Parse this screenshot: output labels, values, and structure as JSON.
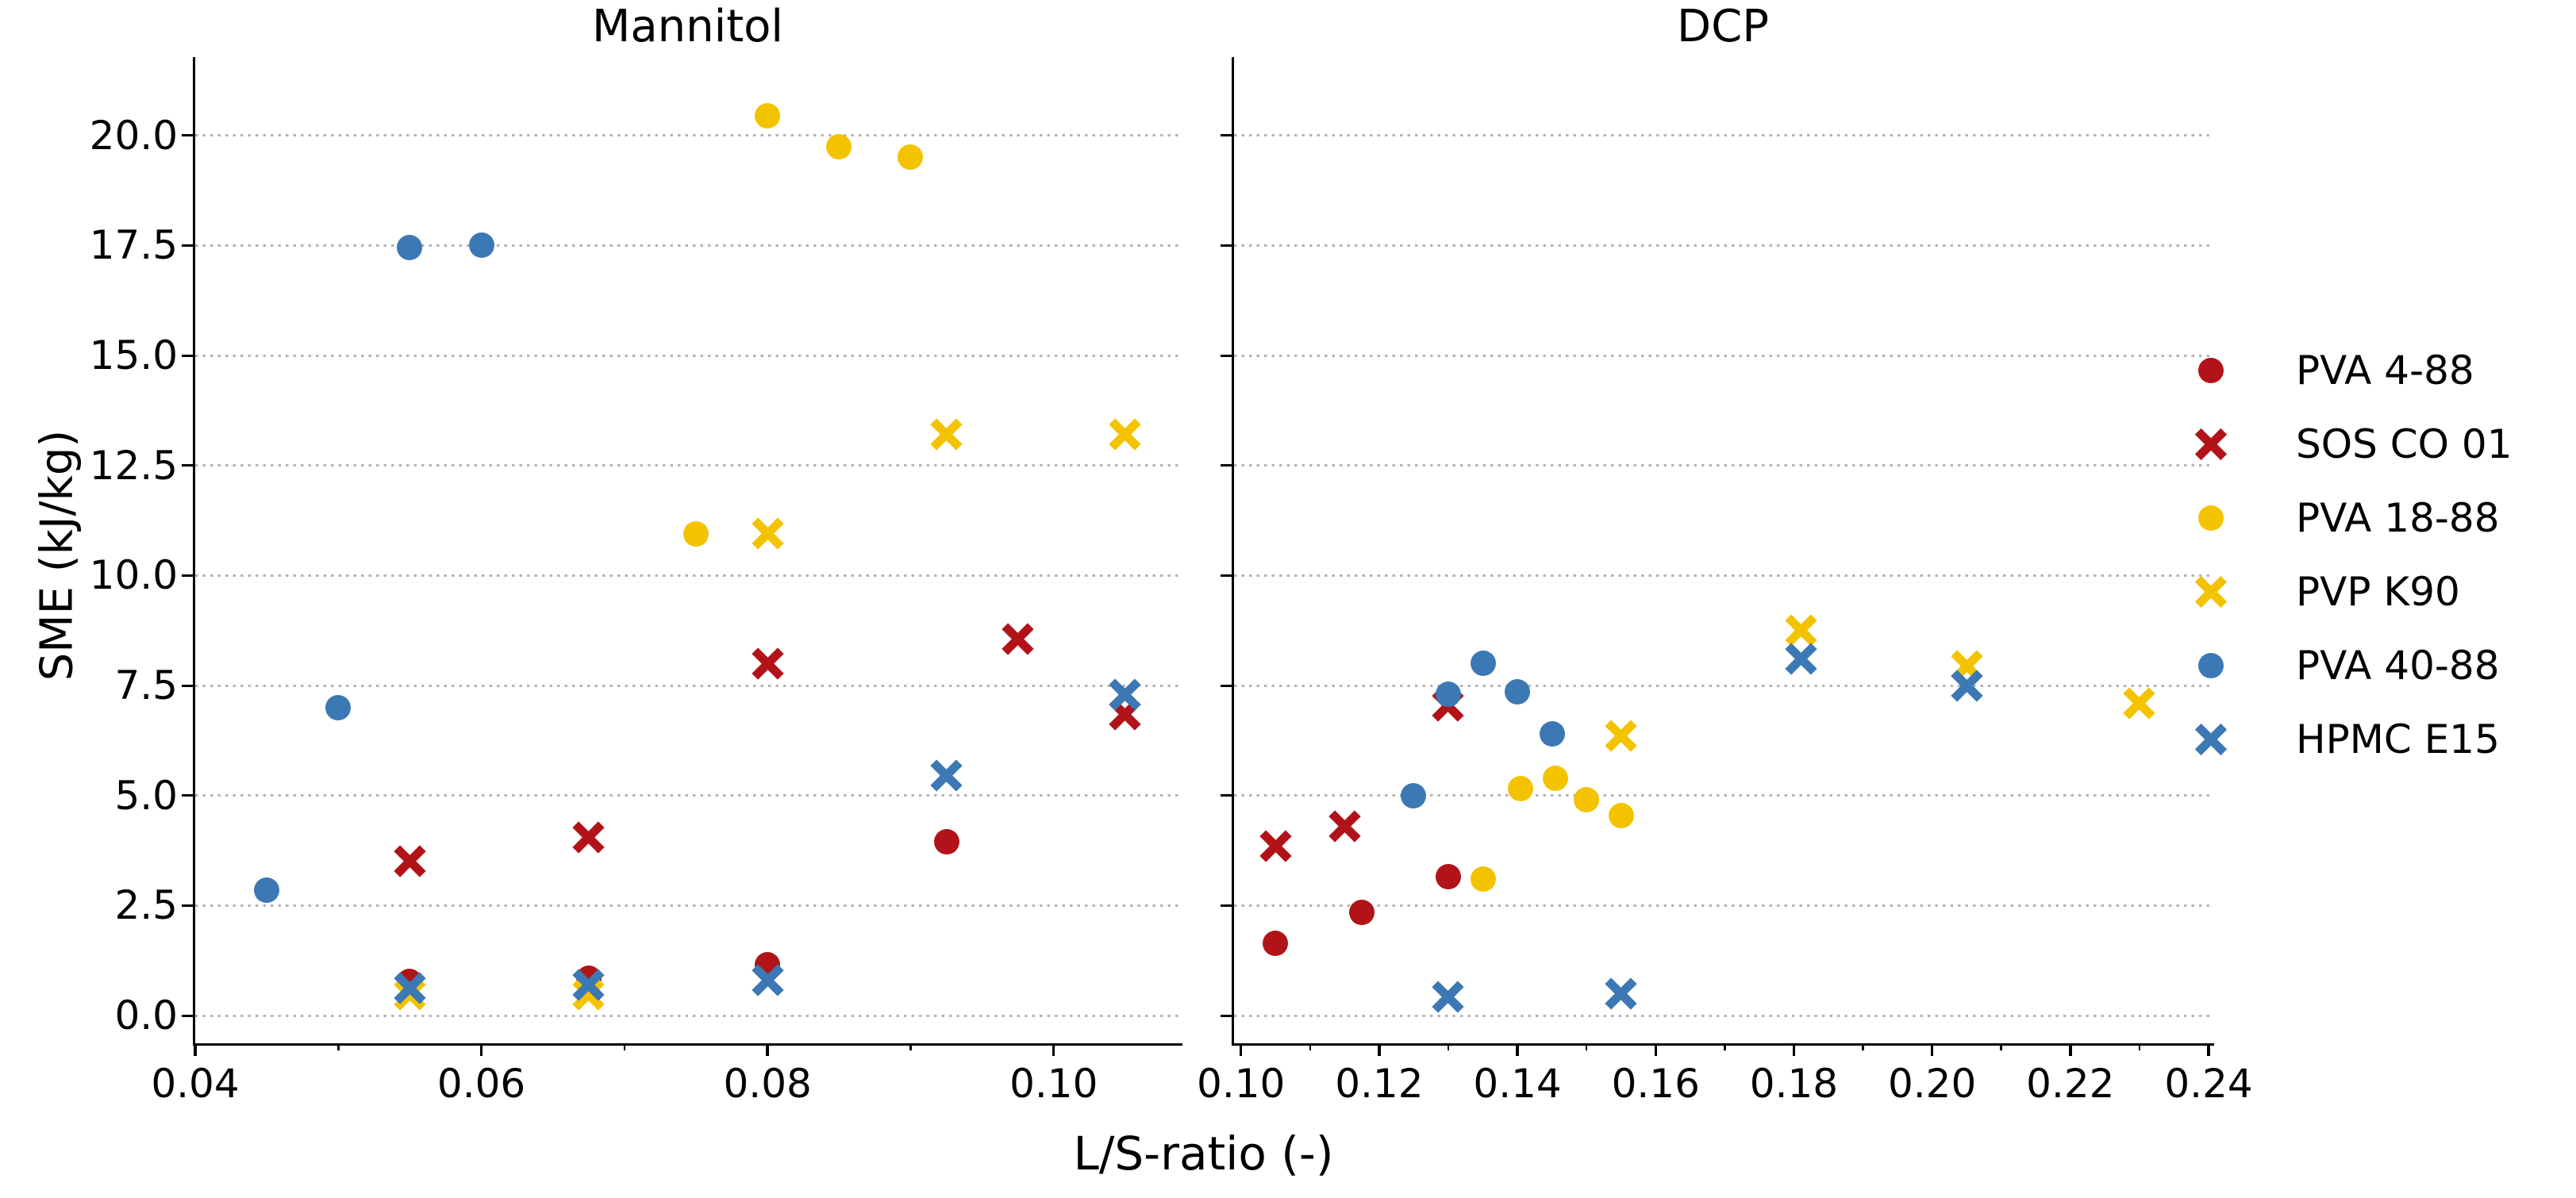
{
  "figure": {
    "xlabel": "L/S-ratio (-)",
    "ylabel": "SME (kJ/kg)"
  },
  "colors": {
    "red": "#B11318",
    "yellow": "#F4C300",
    "blue": "#3C78B4",
    "grid": "#b4b4b4",
    "text": "#000000",
    "background": "#ffffff"
  },
  "legend": {
    "items": [
      {
        "label": "PVA 4-88",
        "color": "red",
        "marker": "circle"
      },
      {
        "label": "SOS CO 01",
        "color": "red",
        "marker": "x"
      },
      {
        "label": "PVA 18-88",
        "color": "yellow",
        "marker": "circle"
      },
      {
        "label": "PVP K90",
        "color": "yellow",
        "marker": "x"
      },
      {
        "label": "PVA 40-88",
        "color": "blue",
        "marker": "circle"
      },
      {
        "label": "HPMC E15",
        "color": "blue",
        "marker": "x"
      }
    ]
  },
  "chart_data": [
    {
      "type": "scatter",
      "title": "Mannitol",
      "xlabel": "L/S-ratio (-)",
      "ylabel": "SME (kJ/kg)",
      "xlim": [
        0.04,
        0.109
      ],
      "ylim": [
        -0.63,
        21.78
      ],
      "grid": "y-dotted",
      "xticks": [
        {
          "v": 0.04,
          "label": "0.04"
        },
        {
          "v": 0.06,
          "label": "0.06"
        },
        {
          "v": 0.08,
          "label": "0.08"
        },
        {
          "v": 0.1,
          "label": "0.10"
        }
      ],
      "xminor": [
        0.05,
        0.07,
        0.09
      ],
      "yticks": [
        {
          "v": 0.0,
          "label": "0.0"
        },
        {
          "v": 2.5,
          "label": "2.5"
        },
        {
          "v": 5.0,
          "label": "5.0"
        },
        {
          "v": 7.5,
          "label": "7.5"
        },
        {
          "v": 10.0,
          "label": "10.0"
        },
        {
          "v": 12.5,
          "label": "12.5"
        },
        {
          "v": 15.0,
          "label": "15.0"
        },
        {
          "v": 17.5,
          "label": "17.5"
        },
        {
          "v": 20.0,
          "label": "20.0"
        }
      ],
      "show_ytick_labels": true,
      "series": [
        {
          "name": "PVA 4-88",
          "marker": "circle",
          "color": "red",
          "points": [
            [
              0.055,
              0.77
            ],
            [
              0.0675,
              0.85
            ],
            [
              0.08,
              1.15
            ],
            [
              0.0925,
              3.95
            ]
          ]
        },
        {
          "name": "SOS CO 01",
          "marker": "x",
          "color": "red",
          "points": [
            [
              0.055,
              3.5
            ],
            [
              0.0675,
              4.05
            ],
            [
              0.08,
              8.0
            ],
            [
              0.0975,
              8.55
            ],
            [
              0.105,
              6.85
            ]
          ]
        },
        {
          "name": "PVA 18-88",
          "marker": "circle",
          "color": "yellow",
          "points": [
            [
              0.075,
              10.95
            ],
            [
              0.08,
              20.45
            ],
            [
              0.085,
              19.75
            ],
            [
              0.09,
              19.5
            ]
          ]
        },
        {
          "name": "PVP K90",
          "marker": "x",
          "color": "yellow",
          "points": [
            [
              0.055,
              0.48
            ],
            [
              0.0675,
              0.48
            ],
            [
              0.08,
              10.95
            ],
            [
              0.0925,
              13.2
            ],
            [
              0.105,
              13.2
            ]
          ]
        },
        {
          "name": "PVA 40-88",
          "marker": "circle",
          "color": "blue",
          "points": [
            [
              0.045,
              2.85
            ],
            [
              0.05,
              7.0
            ],
            [
              0.055,
              17.45
            ],
            [
              0.06,
              17.5
            ]
          ]
        },
        {
          "name": "HPMC E15",
          "marker": "x",
          "color": "blue",
          "points": [
            [
              0.055,
              0.62
            ],
            [
              0.0675,
              0.7
            ],
            [
              0.08,
              0.8
            ],
            [
              0.0925,
              5.45
            ],
            [
              0.105,
              7.3
            ]
          ]
        }
      ]
    },
    {
      "type": "scatter",
      "title": "DCP",
      "xlabel": "L/S-ratio (-)",
      "ylabel": "SME (kJ/kg)",
      "xlim": [
        0.099,
        0.2408
      ],
      "ylim": [
        -0.63,
        21.78
      ],
      "grid": "y-dotted",
      "xticks": [
        {
          "v": 0.1,
          "label": "0.10"
        },
        {
          "v": 0.12,
          "label": "0.12"
        },
        {
          "v": 0.14,
          "label": "0.14"
        },
        {
          "v": 0.16,
          "label": "0.16"
        },
        {
          "v": 0.18,
          "label": "0.18"
        },
        {
          "v": 0.2,
          "label": "0.20"
        },
        {
          "v": 0.22,
          "label": "0.22"
        },
        {
          "v": 0.24,
          "label": "0.24"
        }
      ],
      "xminor": [
        0.11,
        0.13,
        0.15,
        0.17,
        0.19,
        0.21,
        0.23
      ],
      "yticks": [
        {
          "v": 0.0,
          "label": "0.0"
        },
        {
          "v": 2.5,
          "label": "2.5"
        },
        {
          "v": 5.0,
          "label": "5.0"
        },
        {
          "v": 7.5,
          "label": "7.5"
        },
        {
          "v": 10.0,
          "label": "10.0"
        },
        {
          "v": 12.5,
          "label": "12.5"
        },
        {
          "v": 15.0,
          "label": "15.0"
        },
        {
          "v": 17.5,
          "label": "17.5"
        },
        {
          "v": 20.0,
          "label": "20.0"
        }
      ],
      "show_ytick_labels": false,
      "series": [
        {
          "name": "PVA 4-88",
          "marker": "circle",
          "color": "red",
          "points": [
            [
              0.105,
              1.65
            ],
            [
              0.1175,
              2.35
            ],
            [
              0.13,
              3.15
            ]
          ]
        },
        {
          "name": "SOS CO 01",
          "marker": "x",
          "color": "red",
          "points": [
            [
              0.105,
              3.85
            ],
            [
              0.115,
              4.3
            ],
            [
              0.13,
              7.05
            ]
          ]
        },
        {
          "name": "PVA 18-88",
          "marker": "circle",
          "color": "yellow",
          "points": [
            [
              0.135,
              3.1
            ],
            [
              0.1405,
              5.15
            ],
            [
              0.1455,
              5.4
            ],
            [
              0.15,
              4.9
            ],
            [
              0.155,
              4.55
            ]
          ]
        },
        {
          "name": "PVP K90",
          "marker": "x",
          "color": "yellow",
          "points": [
            [
              0.155,
              6.35
            ],
            [
              0.181,
              8.75
            ],
            [
              0.205,
              7.95
            ],
            [
              0.23,
              7.1
            ]
          ]
        },
        {
          "name": "PVA 40-88",
          "marker": "circle",
          "color": "blue",
          "points": [
            [
              0.125,
              5.0
            ],
            [
              0.13,
              7.3
            ],
            [
              0.135,
              8.0
            ],
            [
              0.14,
              7.35
            ],
            [
              0.145,
              6.4
            ]
          ]
        },
        {
          "name": "HPMC E15",
          "marker": "x",
          "color": "blue",
          "points": [
            [
              0.13,
              0.43
            ],
            [
              0.155,
              0.49
            ],
            [
              0.181,
              8.1
            ],
            [
              0.205,
              7.5
            ]
          ]
        }
      ]
    }
  ]
}
